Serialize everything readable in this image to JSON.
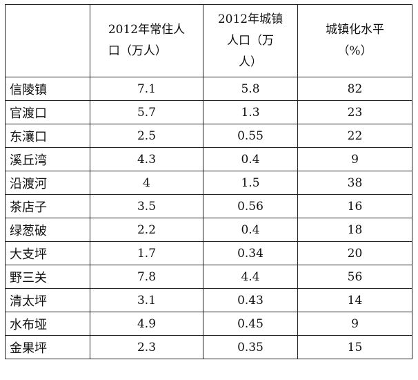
{
  "table": {
    "headers": {
      "corner": "",
      "population": [
        "2012年常住人",
        "口（万人）"
      ],
      "urban": [
        "2012年城镇",
        "人口（万",
        "人）"
      ],
      "rate": [
        "城镇化水平",
        "（%）"
      ]
    },
    "rows": [
      {
        "town": "信陵镇",
        "population": "7.1",
        "urban": "5.8",
        "rate": "82"
      },
      {
        "town": "官渡口",
        "population": "5.7",
        "urban": "1.3",
        "rate": "23"
      },
      {
        "town": "东瀼口",
        "population": "2.5",
        "urban": "0.55",
        "rate": "22"
      },
      {
        "town": "溪丘湾",
        "population": "4.3",
        "urban": "0.4",
        "rate": "9"
      },
      {
        "town": "沿渡河",
        "population": "4",
        "urban": "1.5",
        "rate": "38"
      },
      {
        "town": "茶店子",
        "population": "3.5",
        "urban": "0.56",
        "rate": "16"
      },
      {
        "town": "绿葱破",
        "population": "2.2",
        "urban": "0.4",
        "rate": "18"
      },
      {
        "town": "大支坪",
        "population": "1.7",
        "urban": "0.34",
        "rate": "20"
      },
      {
        "town": "野三关",
        "population": "7.8",
        "urban": "4.4",
        "rate": "56"
      },
      {
        "town": "清太坪",
        "population": "3.1",
        "urban": "0.43",
        "rate": "14"
      },
      {
        "town": "水布垭",
        "population": "4.9",
        "urban": "0.45",
        "rate": "9"
      },
      {
        "town": "金果坪",
        "population": "2.3",
        "urban": "0.35",
        "rate": "15"
      }
    ]
  }
}
